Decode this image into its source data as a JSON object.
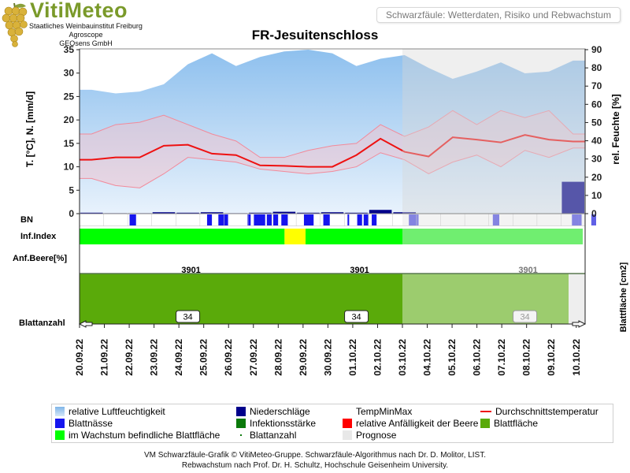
{
  "header": {
    "logo_text": "VitiMeteo",
    "logo_lines": [
      "Staatliches Weinbauinstitut Freiburg",
      "Agroscope",
      "GEOsens GmbH"
    ],
    "tab_label": "Schwarzfäule: Wetterdaten, Risiko und Rebwachstum"
  },
  "chart_data": {
    "type": "area",
    "title": "FR-Jesuitenschloss",
    "x": [
      "20.09.22",
      "21.09.22",
      "22.09.22",
      "23.09.22",
      "24.09.22",
      "25.09.22",
      "26.09.22",
      "27.09.22",
      "28.09.22",
      "29.09.22",
      "30.09.22",
      "01.10.22",
      "02.10.22",
      "03.10.22",
      "04.10.22",
      "05.10.22",
      "06.10.22",
      "07.10.22",
      "08.10.22",
      "09.10.22",
      "10.10.22"
    ],
    "ylabel": "T. [°C], N. [mm/d]",
    "ylabel_right": "rel. Feuchte [%]",
    "ylim": [
      0,
      35
    ],
    "yticks": [
      0,
      5,
      10,
      15,
      20,
      25,
      30,
      35
    ],
    "ylim_right": [
      0,
      90
    ],
    "yticks_right": [
      0,
      10,
      20,
      30,
      40,
      50,
      60,
      70,
      80,
      90
    ],
    "forecast_start": "03.10.22",
    "series": [
      {
        "name": "relative Luftfeuchtigkeit",
        "axis": "right",
        "values": [
          68,
          66,
          67,
          71,
          82,
          88,
          81,
          86,
          89,
          90,
          88,
          81,
          85,
          87,
          80,
          74,
          78,
          83,
          77,
          78,
          84
        ]
      },
      {
        "name": "TempMinMax",
        "kind": "band",
        "min": [
          7.5,
          6.0,
          5.5,
          8.5,
          12.0,
          11.5,
          11.0,
          9.5,
          9.0,
          8.5,
          9.0,
          10.0,
          13.0,
          11.5,
          8.5,
          11.0,
          12.5,
          10.0,
          13.5,
          12.0,
          14.0
        ],
        "max": [
          17.0,
          19.0,
          19.5,
          21.0,
          19.0,
          17.0,
          15.5,
          12.0,
          12.0,
          13.5,
          14.5,
          15.0,
          19.0,
          16.5,
          18.5,
          22.0,
          19.0,
          22.0,
          20.5,
          22.0,
          17.0
        ]
      },
      {
        "name": "Durchschnittstemperatur",
        "values": [
          11.5,
          12.0,
          12.0,
          14.5,
          14.7,
          12.8,
          12.5,
          10.3,
          10.2,
          10.0,
          10.0,
          12.5,
          16.0,
          13.2,
          12.2,
          16.3,
          15.8,
          15.2,
          16.8,
          15.8,
          15.4
        ]
      },
      {
        "name": "Niederschläge",
        "kind": "bar",
        "values": [
          0.2,
          0.1,
          0.1,
          0.3,
          0.2,
          0.3,
          0.1,
          0.2,
          0.4,
          0.2,
          0.3,
          0.2,
          0.8,
          0.3,
          0,
          0,
          0,
          0,
          0,
          0,
          6.8
        ]
      }
    ],
    "leaf_wetness_bn": {
      "label": "BN",
      "wet_fractions": [
        [
          0.155,
          0.175
        ],
        [
          0.395,
          0.41
        ],
        [
          0.43,
          0.46
        ],
        [
          0.52,
          0.53
        ],
        [
          0.54,
          0.575
        ],
        [
          0.58,
          0.595
        ],
        [
          0.6,
          0.615
        ],
        [
          0.625,
          0.645
        ],
        [
          0.695,
          0.725
        ],
        [
          0.755,
          0.775
        ],
        [
          0.83,
          0.835
        ],
        [
          0.86,
          0.875
        ],
        [
          0.88,
          0.895
        ],
        [
          0.905,
          0.92
        ],
        [
          1.02,
          1.05
        ],
        [
          1.28,
          1.3
        ],
        [
          1.525,
          1.545
        ],
        [
          1.545,
          1.555
        ],
        [
          1.585,
          1.6
        ]
      ]
    },
    "infection_index": {
      "label": "Inf.Index",
      "segments": [
        {
          "from": 0,
          "to": 0.635,
          "level": "low"
        },
        {
          "from": 0.635,
          "to": 0.7,
          "level": "medium"
        },
        {
          "from": 0.7,
          "to": 1.0,
          "level": "low"
        },
        {
          "from": 1.0,
          "to": 1.6,
          "level": "low-forecast"
        }
      ]
    },
    "berry_susceptibility": {
      "label": "Anf.Beere[%]",
      "values": []
    },
    "leaf_area": {
      "label": "Blattfläche [cm2]",
      "value_labels": [
        {
          "day": "24.09.22",
          "value": 3901
        },
        {
          "day": "01.10.22",
          "value": 3901
        },
        {
          "day": "08.10.22",
          "value": 3901
        }
      ]
    },
    "leaf_count": {
      "label": "Blattanzahl",
      "value_labels": [
        {
          "day": "24.09.22",
          "value": 34
        },
        {
          "day": "01.10.22",
          "value": 34
        },
        {
          "day": "08.10.22",
          "value": 34
        }
      ]
    }
  },
  "legend": [
    {
      "label": "relative Luftfeuchtigkeit",
      "color": "#a9cdee"
    },
    {
      "label": "Niederschläge",
      "color": "#00008b"
    },
    {
      "label": "TempMinMax",
      "color": ""
    },
    {
      "label": "Durchschnittstemperatur",
      "color": "#ee1111"
    },
    {
      "label": "Blattnässe",
      "color": "#1515ee"
    },
    {
      "label": "Infektionsstärke",
      "color": "#0b7a0b"
    },
    {
      "label": "relative Anfälligkeit der Beere",
      "color": "#ff0000"
    },
    {
      "label": "Blattfläche",
      "color": "#5aaa0a"
    },
    {
      "label": "im Wachstum befindliche Blattfläche",
      "color": "#00ff00"
    },
    {
      "label": "Blattanzahl",
      "color": "#0b7a0b"
    },
    {
      "label": "Prognose",
      "color": "#e8e8e8"
    }
  ],
  "footer": {
    "line1": "VM Schwarzfäule-Grafik © VitiMeteo-Gruppe. Schwarzfäule-Algorithmus nach Dr. D. Molitor, LIST.",
    "line2": "Rebwachstum nach Prof. Dr. H. Schultz, Hochschule Geisenheim University."
  }
}
